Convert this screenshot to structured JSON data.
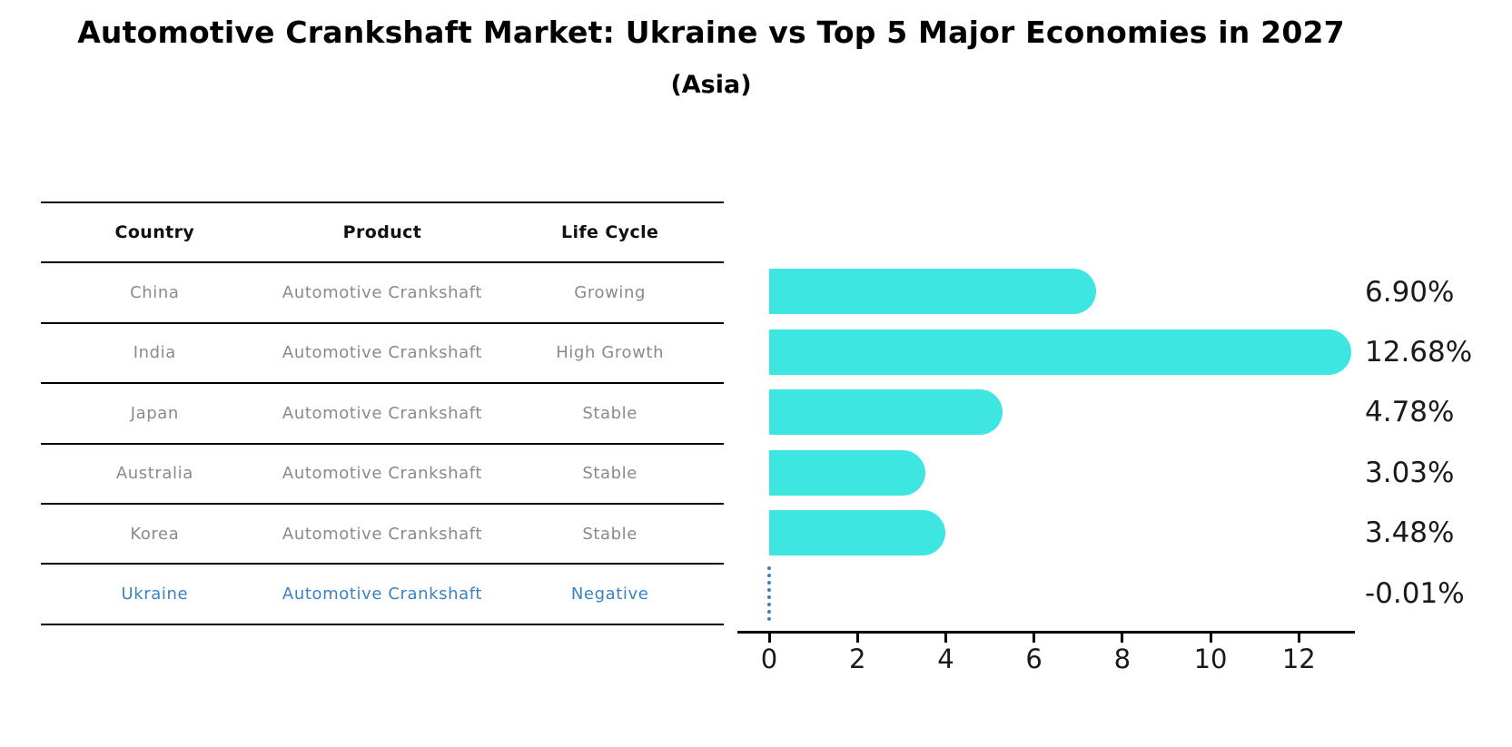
{
  "title": "Automotive Crankshaft Market: Ukraine vs Top 5 Major Economies in 2027",
  "subtitle": "(Asia)",
  "table": {
    "headers": [
      "Country",
      "Product",
      "Life Cycle"
    ],
    "rows": [
      {
        "country": "China",
        "product": "Automotive Crankshaft",
        "life_cycle": "Growing",
        "highlight": false
      },
      {
        "country": "India",
        "product": "Automotive Crankshaft",
        "life_cycle": "High Growth",
        "highlight": false
      },
      {
        "country": "Japan",
        "product": "Automotive Crankshaft",
        "life_cycle": "Stable",
        "highlight": false
      },
      {
        "country": "Australia",
        "product": "Automotive Crankshaft",
        "life_cycle": "Stable",
        "highlight": false
      },
      {
        "country": "Korea",
        "product": "Automotive Crankshaft",
        "life_cycle": "Stable",
        "highlight": false
      },
      {
        "country": "Ukraine",
        "product": "Automotive Crankshaft",
        "life_cycle": "Negative",
        "highlight": true
      }
    ]
  },
  "chart_data": {
    "type": "bar",
    "orientation": "horizontal",
    "title": "Automotive Crankshaft Market: Ukraine vs Top 5 Major Economies in 2027 (Asia)",
    "categories": [
      "China",
      "India",
      "Japan",
      "Australia",
      "Korea",
      "Ukraine"
    ],
    "values": [
      6.9,
      12.68,
      4.78,
      3.03,
      3.48,
      -0.01
    ],
    "value_labels": [
      "6.90%",
      "12.68%",
      "4.78%",
      "3.03%",
      "3.48%",
      "-0.01%"
    ],
    "x_ticks": [
      0,
      2,
      4,
      6,
      8,
      10,
      12
    ],
    "xlim": [
      0,
      13.27
    ],
    "grid": false,
    "legend": false,
    "bar_color": "#3ee6e2",
    "highlight_index": 5,
    "highlight_marker": "dotted-zero-line",
    "highlight_color": "#3b82c4"
  },
  "colors": {
    "bar": "#3ee6e2",
    "highlight_blue": "#3b82c4",
    "table_text_gray": "#8a8a8a",
    "axis_black": "#000000"
  }
}
